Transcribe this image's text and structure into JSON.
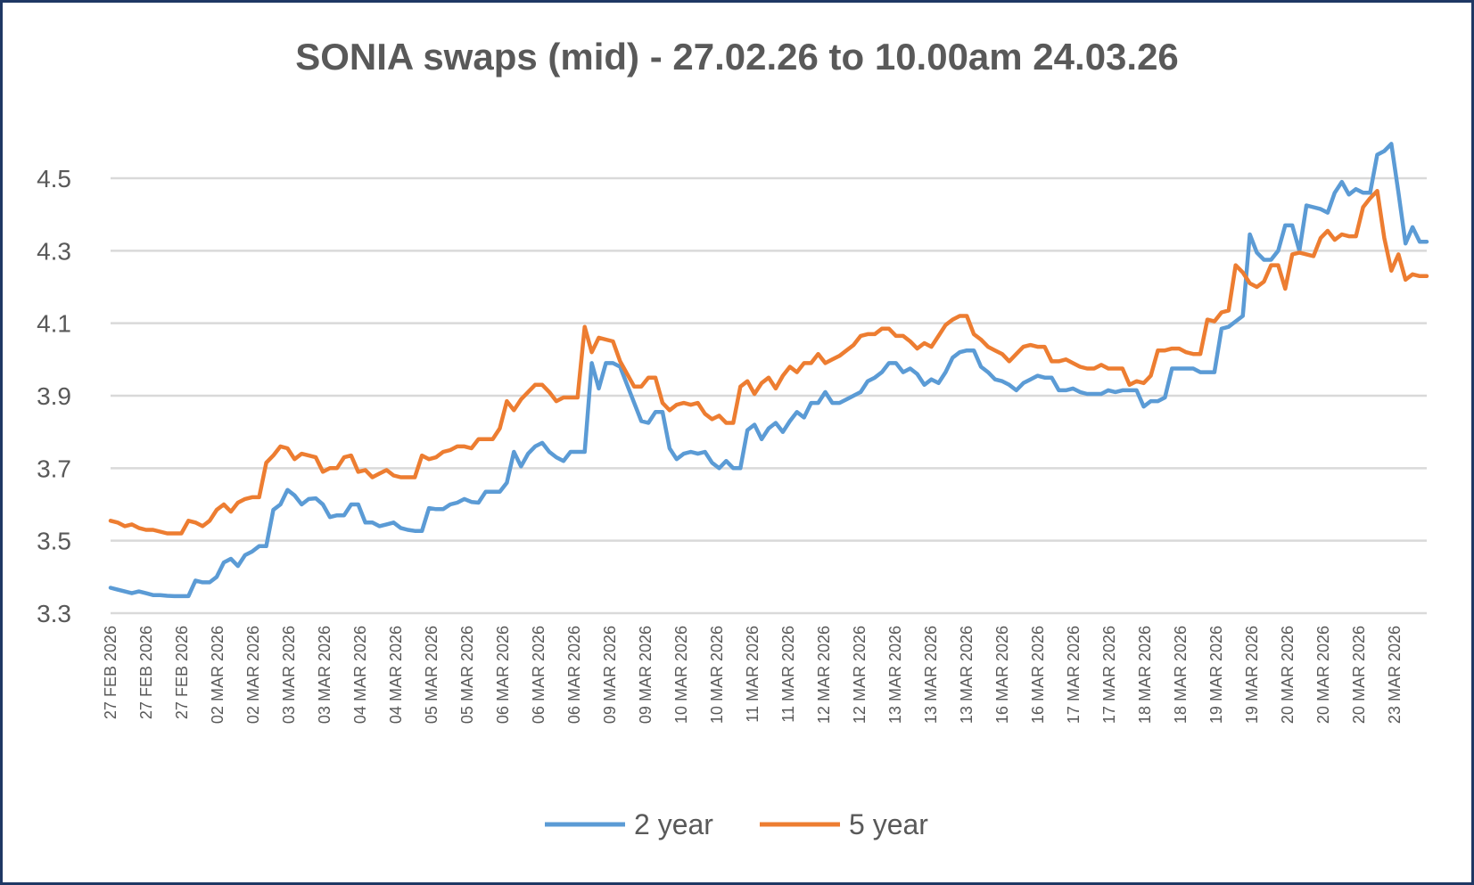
{
  "chart_data": {
    "type": "line",
    "title": "SONIA swaps (mid) - 27.02.26 to 10.00am 24.03.26",
    "xlabel": "",
    "ylabel": "",
    "ylim": [
      3.3,
      4.5
    ],
    "y_ticks": [
      "3.3",
      "3.5",
      "3.7",
      "3.9",
      "4.1",
      "4.3",
      "4.5"
    ],
    "grid": "horizontal",
    "legend_position": "bottom",
    "x_tick_labels": [
      "27 FEB 2026",
      "27 FEB 2026",
      "27 FEB 2026",
      "02 MAR 2026",
      "02 MAR 2026",
      "03 MAR 2026",
      "03 MAR 2026",
      "04 MAR 2026",
      "04 MAR 2026",
      "05 MAR 2026",
      "05 MAR 2026",
      "06 MAR 2026",
      "06 MAR 2026",
      "06 MAR 2026",
      "09 MAR 2026",
      "09 MAR 2026",
      "10 MAR 2026",
      "10 MAR 2026",
      "11 MAR 2026",
      "11 MAR 2026",
      "12 MAR 2026",
      "12 MAR 2026",
      "13 MAR 2026",
      "13 MAR 2026",
      "13 MAR 2026",
      "16 MAR 2026",
      "16 MAR 2026",
      "17 MAR 2026",
      "17 MAR 2026",
      "18 MAR 2026",
      "18 MAR 2026",
      "19 MAR 2026",
      "19 MAR 2026",
      "20 MAR 2026",
      "20 MAR 2026",
      "20 MAR 2026",
      "23 MAR 2026"
    ],
    "series": [
      {
        "name": "2 year",
        "color": "#5b9bd5",
        "values": [
          3.37,
          3.365,
          3.36,
          3.355,
          3.36,
          3.355,
          3.35,
          3.35,
          3.348,
          3.347,
          3.347,
          3.347,
          3.39,
          3.385,
          3.385,
          3.4,
          3.44,
          3.45,
          3.43,
          3.46,
          3.47,
          3.485,
          3.485,
          3.585,
          3.6,
          3.64,
          3.625,
          3.6,
          3.615,
          3.617,
          3.6,
          3.565,
          3.57,
          3.57,
          3.6,
          3.6,
          3.55,
          3.55,
          3.54,
          3.545,
          3.55,
          3.535,
          3.53,
          3.527,
          3.527,
          3.59,
          3.587,
          3.587,
          3.6,
          3.605,
          3.615,
          3.607,
          3.605,
          3.635,
          3.635,
          3.635,
          3.66,
          3.745,
          3.705,
          3.74,
          3.76,
          3.77,
          3.745,
          3.73,
          3.72,
          3.745,
          3.745,
          3.745,
          3.99,
          3.92,
          3.99,
          3.99,
          3.98,
          3.93,
          3.88,
          3.83,
          3.825,
          3.855,
          3.855,
          3.755,
          3.725,
          3.74,
          3.745,
          3.74,
          3.745,
          3.715,
          3.7,
          3.72,
          3.7,
          3.7,
          3.805,
          3.82,
          3.78,
          3.81,
          3.825,
          3.8,
          3.83,
          3.855,
          3.84,
          3.88,
          3.88,
          3.91,
          3.88,
          3.88,
          3.89,
          3.9,
          3.91,
          3.94,
          3.95,
          3.965,
          3.99,
          3.99,
          3.965,
          3.975,
          3.96,
          3.93,
          3.945,
          3.935,
          3.965,
          4.005,
          4.02,
          4.025,
          4.025,
          3.98,
          3.965,
          3.945,
          3.94,
          3.93,
          3.915,
          3.935,
          3.945,
          3.955,
          3.95,
          3.95,
          3.915,
          3.915,
          3.92,
          3.91,
          3.905,
          3.905,
          3.905,
          3.915,
          3.91,
          3.915,
          3.915,
          3.915,
          3.87,
          3.885,
          3.885,
          3.895,
          3.975,
          3.975,
          3.975,
          3.975,
          3.965,
          3.965,
          3.965,
          4.085,
          4.09,
          4.105,
          4.12,
          4.345,
          4.295,
          4.275,
          4.275,
          4.3,
          4.37,
          4.37,
          4.3,
          4.425,
          4.42,
          4.415,
          4.405,
          4.46,
          4.49,
          4.455,
          4.47,
          4.46,
          4.46,
          4.565,
          4.575,
          4.595,
          4.46,
          4.32,
          4.365,
          4.325,
          4.325
        ]
      },
      {
        "name": "5 year",
        "color": "#ed7d31",
        "values": [
          3.555,
          3.55,
          3.54,
          3.545,
          3.535,
          3.53,
          3.53,
          3.525,
          3.52,
          3.52,
          3.52,
          3.555,
          3.55,
          3.54,
          3.555,
          3.585,
          3.6,
          3.58,
          3.605,
          3.615,
          3.62,
          3.62,
          3.715,
          3.735,
          3.76,
          3.755,
          3.725,
          3.74,
          3.735,
          3.73,
          3.69,
          3.7,
          3.7,
          3.73,
          3.735,
          3.69,
          3.695,
          3.675,
          3.685,
          3.695,
          3.68,
          3.675,
          3.675,
          3.675,
          3.735,
          3.725,
          3.73,
          3.745,
          3.75,
          3.76,
          3.76,
          3.755,
          3.78,
          3.78,
          3.78,
          3.81,
          3.885,
          3.86,
          3.89,
          3.91,
          3.93,
          3.93,
          3.91,
          3.885,
          3.895,
          3.895,
          3.895,
          4.09,
          4.02,
          4.06,
          4.055,
          4.05,
          3.995,
          3.96,
          3.925,
          3.925,
          3.95,
          3.95,
          3.88,
          3.86,
          3.875,
          3.88,
          3.875,
          3.88,
          3.85,
          3.835,
          3.845,
          3.825,
          3.825,
          3.925,
          3.94,
          3.905,
          3.935,
          3.95,
          3.92,
          3.955,
          3.98,
          3.965,
          3.99,
          3.99,
          4.015,
          3.99,
          4.0,
          4.01,
          4.025,
          4.04,
          4.065,
          4.07,
          4.07,
          4.085,
          4.085,
          4.065,
          4.065,
          4.05,
          4.03,
          4.045,
          4.035,
          4.065,
          4.095,
          4.11,
          4.12,
          4.12,
          4.07,
          4.055,
          4.035,
          4.025,
          4.015,
          3.995,
          4.015,
          4.035,
          4.04,
          4.035,
          4.035,
          3.995,
          3.995,
          4.0,
          3.99,
          3.98,
          3.975,
          3.975,
          3.985,
          3.975,
          3.975,
          3.975,
          3.93,
          3.94,
          3.935,
          3.955,
          4.025,
          4.025,
          4.03,
          4.03,
          4.02,
          4.015,
          4.015,
          4.11,
          4.105,
          4.13,
          4.135,
          4.26,
          4.24,
          4.21,
          4.2,
          4.215,
          4.26,
          4.26,
          4.195,
          4.29,
          4.295,
          4.29,
          4.285,
          4.335,
          4.355,
          4.33,
          4.345,
          4.34,
          4.34,
          4.42,
          4.445,
          4.465,
          4.335,
          4.245,
          4.29,
          4.22,
          4.235,
          4.23,
          4.23
        ]
      }
    ]
  },
  "colors": {
    "frame": "#1f3864",
    "grid": "#d9d9d9",
    "text": "#595959"
  }
}
